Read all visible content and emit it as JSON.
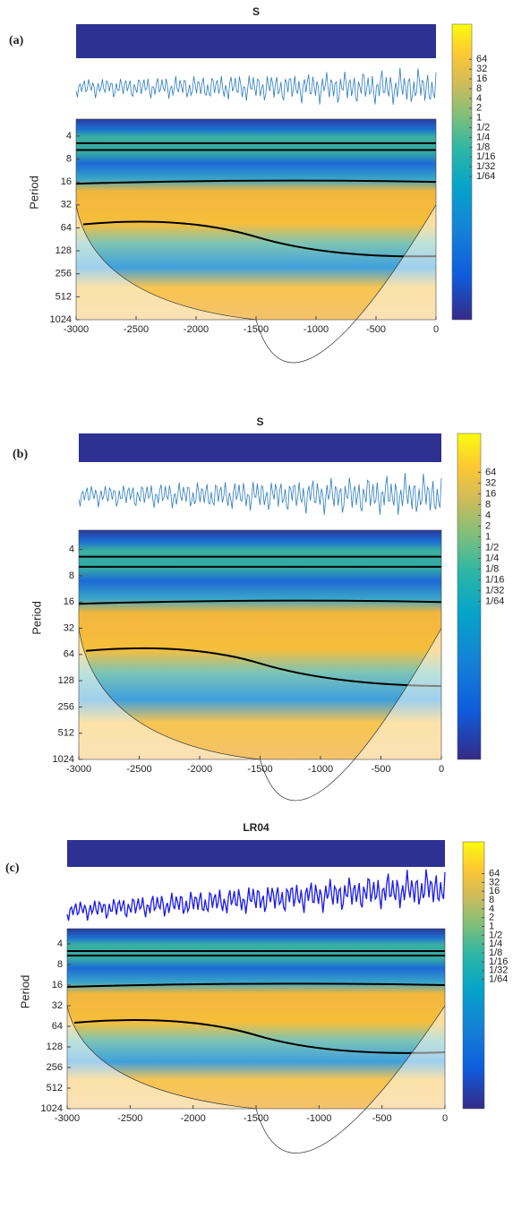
{
  "chart_data": [
    {
      "type": "wavelet",
      "panel_label": "(a)",
      "title": "S",
      "ylabel": "Period",
      "xlim": [
        -3000,
        0
      ],
      "xticks": [
        -3000,
        -2500,
        -2000,
        -1500,
        -1000,
        -500,
        0
      ],
      "ylim": [
        2.4,
        1024
      ],
      "y_log2": true,
      "y_reversed": true,
      "yticks": [
        4,
        8,
        16,
        32,
        64,
        128,
        256,
        512,
        1024
      ],
      "colorbar_log2": true,
      "clim": [
        6e-07,
        780
      ],
      "colorbar_ticks": [
        64,
        32,
        16,
        8,
        4,
        2,
        1,
        {
          "value": 0.5,
          "label": "1/2"
        },
        {
          "value": 0.25,
          "label": "1/4"
        },
        {
          "value": 0.125,
          "label": "1/8"
        },
        {
          "value": 0.0625,
          "label": "1/16"
        },
        {
          "value": 0.03125,
          "label": "1/32"
        },
        {
          "value": 0.015625,
          "label": "1/64"
        }
      ],
      "line_color": "#2a7bbf"
    },
    {
      "type": "wavelet",
      "panel_label": "(b)",
      "title": "S",
      "ylabel": "Period",
      "xlim": [
        -3000,
        0
      ],
      "xticks": [
        -3000,
        -2500,
        -2000,
        -1500,
        -1000,
        -500,
        0
      ],
      "ylim": [
        2.4,
        1024
      ],
      "y_log2": true,
      "y_reversed": true,
      "yticks": [
        4,
        8,
        16,
        32,
        64,
        128,
        256,
        512,
        1024
      ],
      "colorbar_log2": true,
      "clim": [
        6e-07,
        780
      ],
      "colorbar_ticks": [
        64,
        32,
        16,
        8,
        4,
        2,
        1,
        {
          "value": 0.5,
          "label": "1/2"
        },
        {
          "value": 0.25,
          "label": "1/4"
        },
        {
          "value": 0.125,
          "label": "1/8"
        },
        {
          "value": 0.0625,
          "label": "1/16"
        },
        {
          "value": 0.03125,
          "label": "1/32"
        },
        {
          "value": 0.015625,
          "label": "1/64"
        }
      ],
      "line_color": "#2a7bbf"
    },
    {
      "type": "wavelet",
      "panel_label": "(c)",
      "title": "LR04",
      "ylabel": "Period",
      "xlim": [
        -3000,
        0
      ],
      "xticks": [
        -3000,
        -2500,
        -2000,
        -1500,
        -1000,
        -500,
        0
      ],
      "ylim": [
        2.4,
        1024
      ],
      "y_log2": true,
      "y_reversed": true,
      "yticks": [
        4,
        8,
        16,
        32,
        64,
        128,
        256,
        512,
        1024
      ],
      "colorbar_log2": true,
      "clim": [
        6e-07,
        780
      ],
      "colorbar_ticks": [
        64,
        32,
        16,
        8,
        4,
        2,
        1,
        {
          "value": 0.5,
          "label": "1/2"
        },
        {
          "value": 0.25,
          "label": "1/4"
        },
        {
          "value": 0.125,
          "label": "1/8"
        },
        {
          "value": 0.0625,
          "label": "1/16"
        },
        {
          "value": 0.03125,
          "label": "1/32"
        },
        {
          "value": 0.015625,
          "label": "1/64"
        }
      ],
      "line_color": "#1a1aee"
    }
  ]
}
